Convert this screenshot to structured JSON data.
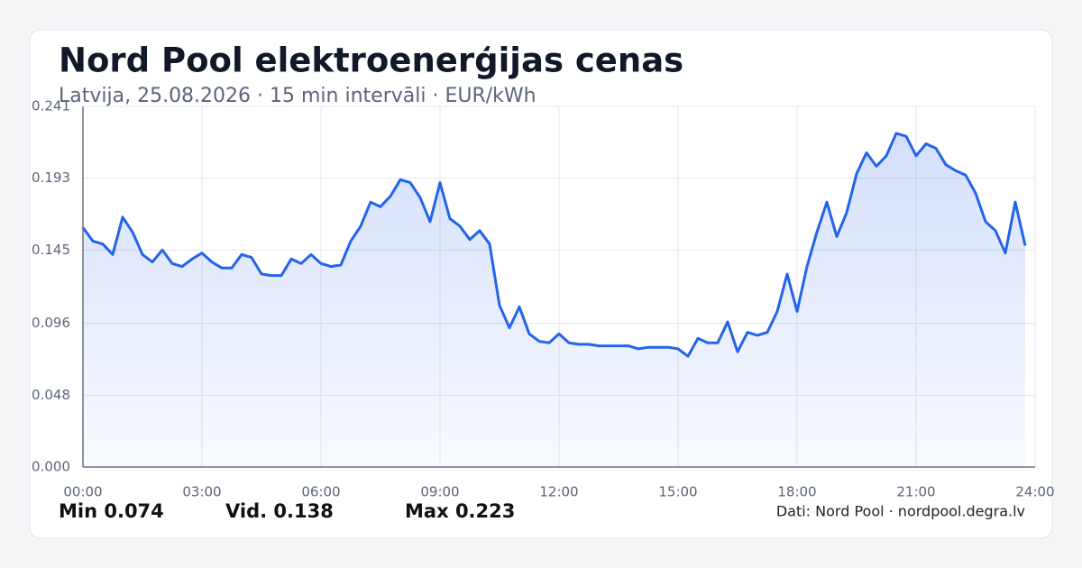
{
  "chart_data": {
    "type": "area",
    "title": "Nord Pool elektroenerģijas cenas",
    "subtitle": "Latvija, 25.08.2026 · 15 min intervāli · EUR/kWh",
    "x": [
      0,
      0.25,
      0.5,
      0.75,
      1,
      1.25,
      1.5,
      1.75,
      2,
      2.25,
      2.5,
      2.75,
      3,
      3.25,
      3.5,
      3.75,
      4,
      4.25,
      4.5,
      4.75,
      5,
      5.25,
      5.5,
      5.75,
      6,
      6.25,
      6.5,
      6.75,
      7,
      7.25,
      7.5,
      7.75,
      8,
      8.25,
      8.5,
      8.75,
      9,
      9.25,
      9.5,
      9.75,
      10,
      10.25,
      10.5,
      10.75,
      11,
      11.25,
      11.5,
      11.75,
      12,
      12.25,
      12.5,
      12.75,
      13,
      13.25,
      13.5,
      13.75,
      14,
      14.25,
      14.5,
      14.75,
      15,
      15.25,
      15.5,
      15.75,
      16,
      16.25,
      16.5,
      16.75,
      17,
      17.25,
      17.5,
      17.75,
      18,
      18.25,
      18.5,
      18.75,
      19,
      19.25,
      19.5,
      19.75,
      20,
      20.25,
      20.5,
      20.75,
      21,
      21.25,
      21.5,
      21.75,
      22,
      22.25,
      22.5,
      22.75,
      23,
      23.25,
      23.5,
      23.75
    ],
    "values": [
      0.16,
      0.151,
      0.149,
      0.142,
      0.167,
      0.157,
      0.142,
      0.137,
      0.145,
      0.136,
      0.134,
      0.139,
      0.143,
      0.137,
      0.133,
      0.133,
      0.142,
      0.14,
      0.129,
      0.128,
      0.128,
      0.139,
      0.136,
      0.142,
      0.136,
      0.134,
      0.135,
      0.151,
      0.161,
      0.177,
      0.174,
      0.181,
      0.192,
      0.19,
      0.18,
      0.164,
      0.19,
      0.166,
      0.161,
      0.152,
      0.158,
      0.149,
      0.108,
      0.093,
      0.107,
      0.089,
      0.084,
      0.083,
      0.089,
      0.083,
      0.082,
      0.082,
      0.081,
      0.081,
      0.081,
      0.081,
      0.079,
      0.08,
      0.08,
      0.08,
      0.079,
      0.074,
      0.086,
      0.083,
      0.083,
      0.097,
      0.077,
      0.09,
      0.088,
      0.09,
      0.104,
      0.129,
      0.104,
      0.134,
      0.157,
      0.177,
      0.154,
      0.17,
      0.196,
      0.21,
      0.201,
      0.208,
      0.223,
      0.221,
      0.208,
      0.216,
      0.213,
      0.202,
      0.198,
      0.195,
      0.183,
      0.164,
      0.158,
      0.143,
      0.177,
      0.148
    ],
    "color": "#2563eb",
    "xlim": [
      0,
      24
    ],
    "xticks": [
      {
        "value": 0,
        "label": "00:00"
      },
      {
        "value": 3,
        "label": "03:00"
      },
      {
        "value": 6,
        "label": "06:00"
      },
      {
        "value": 9,
        "label": "09:00"
      },
      {
        "value": 12,
        "label": "12:00"
      },
      {
        "value": 15,
        "label": "15:00"
      },
      {
        "value": 18,
        "label": "18:00"
      },
      {
        "value": 21,
        "label": "21:00"
      },
      {
        "value": 24,
        "label": "24:00"
      }
    ],
    "ylim": [
      0,
      0.241
    ],
    "yticks": [
      {
        "value": 0,
        "label": "0.000"
      },
      0.048,
      0.096,
      0.145,
      0.193,
      0.241
    ],
    "grid": true,
    "stats": [
      {
        "label": "Min",
        "value": 0.074
      },
      {
        "label": "Vid.",
        "value": 0.138
      },
      {
        "label": "Max",
        "value": 0.223
      }
    ],
    "source": "Dati: Nord Pool · nordpool.degra.lv"
  }
}
